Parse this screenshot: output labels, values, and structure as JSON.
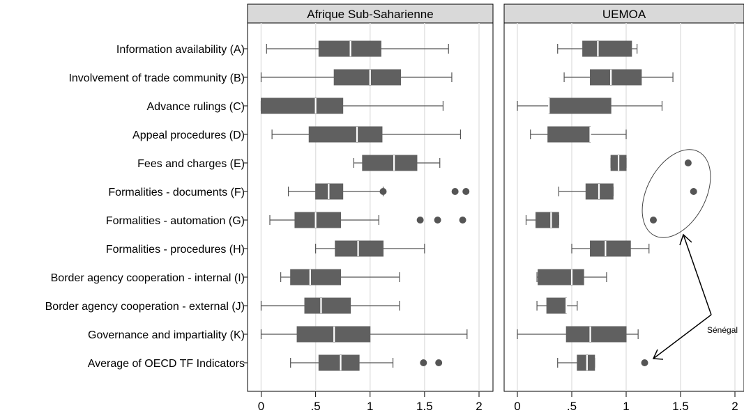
{
  "chart_data": {
    "type": "boxplot",
    "orientation": "horizontal",
    "categories": [
      "Information availability (A)",
      "Involvement of trade community (B)",
      "Advance rulings (C)",
      "Appeal procedures (D)",
      "Fees and charges (E)",
      "Formalities - documents (F)",
      "Formalities - automation (G)",
      "Formalities - procedures (H)",
      "Border agency cooperation - internal (I)",
      "Border agency cooperation - external (J)",
      "Governance and impartiality (K)",
      "Average of OECD TF Indicators"
    ],
    "x_ticks": [
      {
        "value": 0,
        "label": "0"
      },
      {
        "value": 0.5,
        "label": ".5"
      },
      {
        "value": 1,
        "label": "1"
      },
      {
        "value": 1.5,
        "label": "1.5"
      },
      {
        "value": 2,
        "label": "2"
      }
    ],
    "xlim": [
      -0.08,
      2.1
    ],
    "grid": "vertical",
    "panels": [
      {
        "title": "Afrique Sub-Saharienne",
        "boxes": [
          {
            "min": 0.05,
            "q1": 0.53,
            "median": 0.82,
            "q3": 1.1,
            "max": 1.72,
            "outliers": []
          },
          {
            "min": 0.0,
            "q1": 0.67,
            "median": 1.0,
            "q3": 1.28,
            "max": 1.75,
            "outliers": []
          },
          {
            "min": 0.0,
            "q1": 0.0,
            "median": 0.5,
            "q3": 0.75,
            "max": 1.67,
            "outliers": []
          },
          {
            "min": 0.1,
            "q1": 0.44,
            "median": 0.88,
            "q3": 1.11,
            "max": 1.83,
            "outliers": []
          },
          {
            "min": 0.85,
            "q1": 0.93,
            "median": 1.22,
            "q3": 1.43,
            "max": 1.64,
            "outliers": []
          },
          {
            "min": 0.25,
            "q1": 0.5,
            "median": 0.62,
            "q3": 0.75,
            "max": 1.12,
            "outliers": [
              1.12,
              1.78,
              1.88
            ]
          },
          {
            "min": 0.08,
            "q1": 0.31,
            "median": 0.5,
            "q3": 0.73,
            "max": 1.08,
            "outliers": [
              1.46,
              1.62,
              1.85
            ]
          },
          {
            "min": 0.5,
            "q1": 0.68,
            "median": 0.89,
            "q3": 1.12,
            "max": 1.5,
            "outliers": []
          },
          {
            "min": 0.18,
            "q1": 0.27,
            "median": 0.45,
            "q3": 0.73,
            "max": 1.27,
            "outliers": []
          },
          {
            "min": 0.0,
            "q1": 0.4,
            "median": 0.55,
            "q3": 0.82,
            "max": 1.27,
            "outliers": []
          },
          {
            "min": 0.0,
            "q1": 0.33,
            "median": 0.67,
            "q3": 1.0,
            "max": 1.89,
            "outliers": []
          },
          {
            "min": 0.27,
            "q1": 0.53,
            "median": 0.73,
            "q3": 0.9,
            "max": 1.21,
            "outliers": [
              1.49,
              1.63
            ]
          }
        ]
      },
      {
        "title": "UEMOA",
        "boxes": [
          {
            "min": 0.37,
            "q1": 0.6,
            "median": 0.74,
            "q3": 1.05,
            "max": 1.1,
            "outliers": []
          },
          {
            "min": 0.43,
            "q1": 0.67,
            "median": 0.86,
            "q3": 1.14,
            "max": 1.43,
            "outliers": []
          },
          {
            "min": 0.0,
            "q1": 0.29,
            "median": 0.29,
            "q3": 0.86,
            "max": 1.33,
            "outliers": []
          },
          {
            "min": 0.12,
            "q1": 0.28,
            "median": 0.67,
            "q3": 0.67,
            "max": 1.0,
            "outliers": []
          },
          {
            "min": 0.86,
            "q1": 0.86,
            "median": 0.93,
            "q3": 1.0,
            "max": 1.0,
            "outliers": [
              1.57
            ]
          },
          {
            "min": 0.38,
            "q1": 0.63,
            "median": 0.75,
            "q3": 0.88,
            "max": 0.88,
            "outliers": [
              1.62
            ]
          },
          {
            "min": 0.08,
            "q1": 0.17,
            "median": 0.31,
            "q3": 0.38,
            "max": 0.38,
            "outliers": [
              1.25
            ]
          },
          {
            "min": 0.5,
            "q1": 0.67,
            "median": 0.81,
            "q3": 1.04,
            "max": 1.21,
            "outliers": []
          },
          {
            "min": 0.18,
            "q1": 0.19,
            "median": 0.5,
            "q3": 0.61,
            "max": 0.82,
            "outliers": []
          },
          {
            "min": 0.18,
            "q1": 0.27,
            "median": 0.45,
            "q3": 0.45,
            "max": 0.55,
            "outliers": []
          },
          {
            "min": 0.0,
            "q1": 0.45,
            "median": 0.67,
            "q3": 1.0,
            "max": 1.11,
            "outliers": []
          },
          {
            "min": 0.37,
            "q1": 0.55,
            "median": 0.64,
            "q3": 0.71,
            "max": 0.71,
            "outliers": [
              1.17
            ]
          }
        ]
      }
    ],
    "annotation": {
      "text": "Sénégal",
      "highlight": "circle around UEMOA outliers E, F, G; arrows to ellipse and to average outlier"
    }
  }
}
